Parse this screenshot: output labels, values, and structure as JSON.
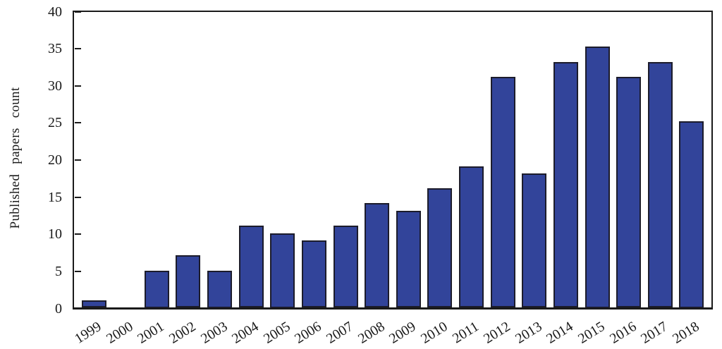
{
  "chart_data": {
    "type": "bar",
    "title": "",
    "xlabel": "",
    "ylabel": "Published papers count",
    "categories": [
      "1999",
      "2000",
      "2001",
      "2002",
      "2003",
      "2004",
      "2005",
      "2006",
      "2007",
      "2008",
      "2009",
      "2010",
      "2011",
      "2012",
      "2013",
      "2014",
      "2015",
      "2016",
      "2017",
      "2018"
    ],
    "values": [
      1,
      0,
      5,
      7,
      5,
      11,
      10,
      9,
      11,
      14,
      13,
      16,
      19,
      31,
      18,
      33,
      35,
      31,
      33,
      25
    ],
    "ylim": [
      0,
      40
    ],
    "yticks": [
      0,
      5,
      10,
      15,
      20,
      25,
      30,
      35,
      40
    ],
    "grid": false,
    "legend": null,
    "frame": true,
    "x_label_rotation_deg": 32,
    "colors": {
      "bar_fill": "#32449a",
      "bar_edge": "#1c1c2b",
      "axis": "#1a1a1a",
      "text": "#1a1a1a",
      "background": "#ffffff"
    }
  }
}
